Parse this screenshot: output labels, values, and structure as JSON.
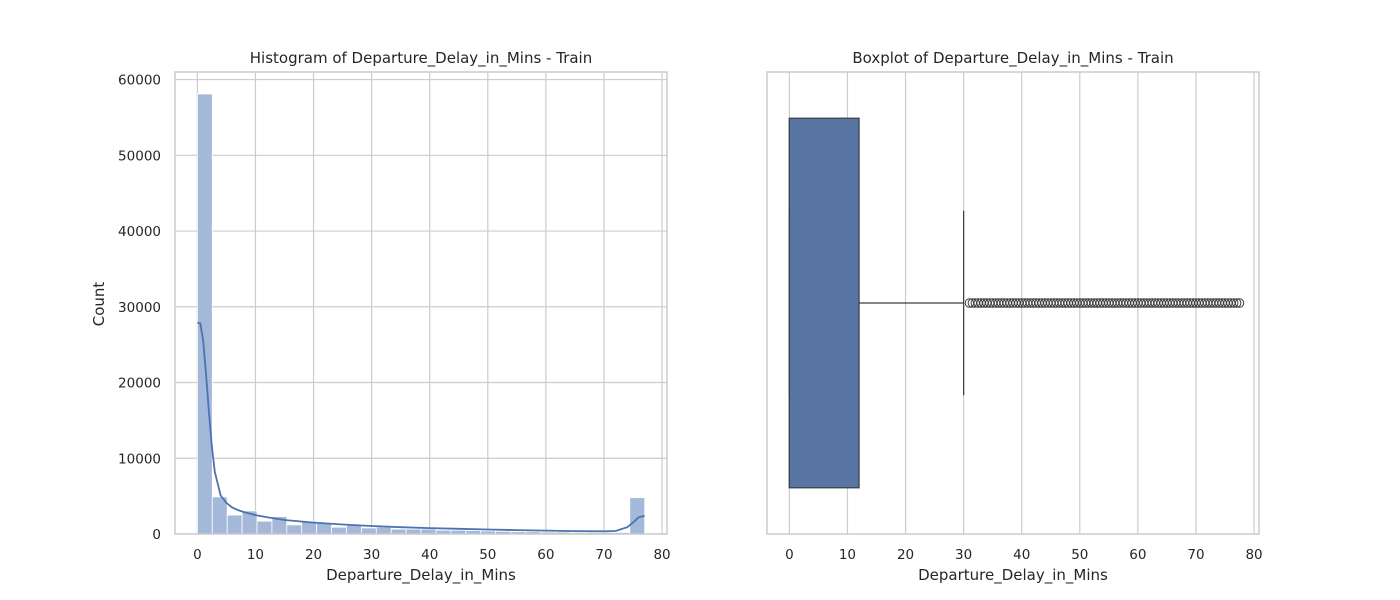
{
  "chart_data": [
    {
      "type": "bar",
      "title": "Histogram of Departure_Delay_in_Mins - Train",
      "xlabel": "Departure_Delay_in_Mins",
      "ylabel": "Count",
      "xlim": [
        -3.85,
        80.85
      ],
      "ylim": [
        0,
        61000
      ],
      "grid": true,
      "xticks": [
        0,
        10,
        20,
        30,
        40,
        50,
        60,
        70,
        80
      ],
      "yticks": [
        0,
        10000,
        20000,
        30000,
        40000,
        50000,
        60000
      ],
      "bin_width": 2.567,
      "bin_edges_start": 0,
      "values": [
        58100,
        4900,
        2500,
        3050,
        1700,
        2300,
        1200,
        1700,
        1400,
        900,
        1150,
        800,
        900,
        650,
        650,
        650,
        500,
        500,
        450,
        400,
        350,
        300,
        300,
        250,
        250,
        200,
        200,
        200,
        200,
        4800
      ],
      "kde": {
        "x": [
          0,
          0.5,
          1,
          1.5,
          2,
          2.5,
          3,
          4,
          5,
          6,
          7,
          8,
          10,
          12,
          15,
          20,
          25,
          30,
          35,
          40,
          45,
          50,
          55,
          60,
          65,
          70,
          72,
          74,
          75,
          76,
          77
        ],
        "y": [
          27900,
          27800,
          25500,
          21000,
          16000,
          11500,
          8200,
          5100,
          4100,
          3500,
          3150,
          2900,
          2500,
          2200,
          1850,
          1500,
          1250,
          1050,
          900,
          780,
          680,
          600,
          520,
          450,
          380,
          350,
          400,
          900,
          1500,
          2200,
          2400
        ]
      }
    },
    {
      "type": "box",
      "title": "Boxplot of Departure_Delay_in_Mins - Train",
      "xlabel": "Departure_Delay_in_Mins",
      "xlim": [
        -3.85,
        80.85
      ],
      "grid": true,
      "xticks": [
        0,
        10,
        20,
        30,
        40,
        50,
        60,
        70,
        80
      ],
      "whisker_low": 0,
      "q1": 0,
      "median": 0,
      "q3": 12,
      "whisker_high": 30,
      "outliers": [
        31,
        31.5,
        32,
        32.5,
        33,
        33.5,
        34,
        34.5,
        35,
        35.5,
        36,
        36.5,
        37,
        37.5,
        38,
        38.5,
        39,
        39.5,
        40,
        40.5,
        41,
        41.5,
        42,
        42.5,
        43,
        43.5,
        44,
        44.5,
        45,
        45.5,
        46,
        46.5,
        47,
        47.5,
        48,
        48.5,
        49,
        49.5,
        50,
        50.5,
        51,
        51.5,
        52,
        52.5,
        53,
        53.5,
        54,
        54.5,
        55,
        55.5,
        56,
        56.5,
        57,
        57.5,
        58,
        58.5,
        59,
        59.5,
        60,
        60.5,
        61,
        61.5,
        62,
        62.5,
        63,
        63.5,
        64,
        64.5,
        65,
        65.5,
        66,
        66.5,
        67,
        67.5,
        68,
        68.5,
        69,
        69.5,
        70,
        70.5,
        71,
        71.5,
        72,
        72.5,
        73,
        73.5,
        74,
        74.5,
        75,
        75.5,
        76,
        76.5,
        77,
        77.5
      ]
    }
  ],
  "colors": {
    "bar_fill": "#a4b8d9",
    "kde_line": "#4c72b0",
    "box_fill": "#5875a4",
    "box_edge": "#3d3d3d",
    "grid": "#cccccc",
    "frame": "#cccccc"
  }
}
